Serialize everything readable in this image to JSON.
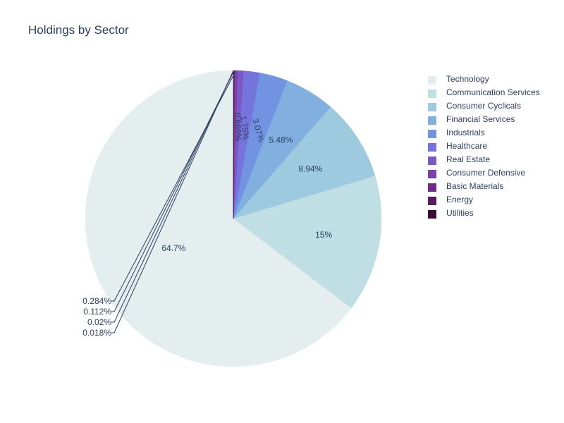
{
  "chart_data": {
    "type": "pie",
    "title": "Holdings by Sector",
    "legend_position": "right",
    "slices": [
      {
        "label": "Technology",
        "value": 64.7,
        "text": "64.7%",
        "color": "#e4eeef"
      },
      {
        "label": "Communication Services",
        "value": 15.0,
        "text": "15%",
        "color": "#c0dfe5"
      },
      {
        "label": "Consumer Cyclicals",
        "value": 8.94,
        "text": "8.94%",
        "color": "#9dcadf"
      },
      {
        "label": "Financial Services",
        "value": 5.48,
        "text": "5.48%",
        "color": "#81b0e0"
      },
      {
        "label": "Industrials",
        "value": 3.07,
        "text": "3.07%",
        "color": "#7293e2"
      },
      {
        "label": "Healthcare",
        "value": 1.75,
        "text": "1.75%",
        "color": "#7474dc"
      },
      {
        "label": "Real Estate",
        "value": 0.669,
        "text": "0.669%",
        "color": "#7a59c4"
      },
      {
        "label": "Consumer Defensive",
        "value": 0.284,
        "text": "0.284%",
        "color": "#7c40a8"
      },
      {
        "label": "Basic Materials",
        "value": 0.112,
        "text": "0.112%",
        "color": "#6d2a86"
      },
      {
        "label": "Energy",
        "value": 0.02,
        "text": "0.02%",
        "color": "#581a60"
      },
      {
        "label": "Utilities",
        "value": 0.018,
        "text": "0.018%",
        "color": "#3c0c38"
      }
    ]
  }
}
